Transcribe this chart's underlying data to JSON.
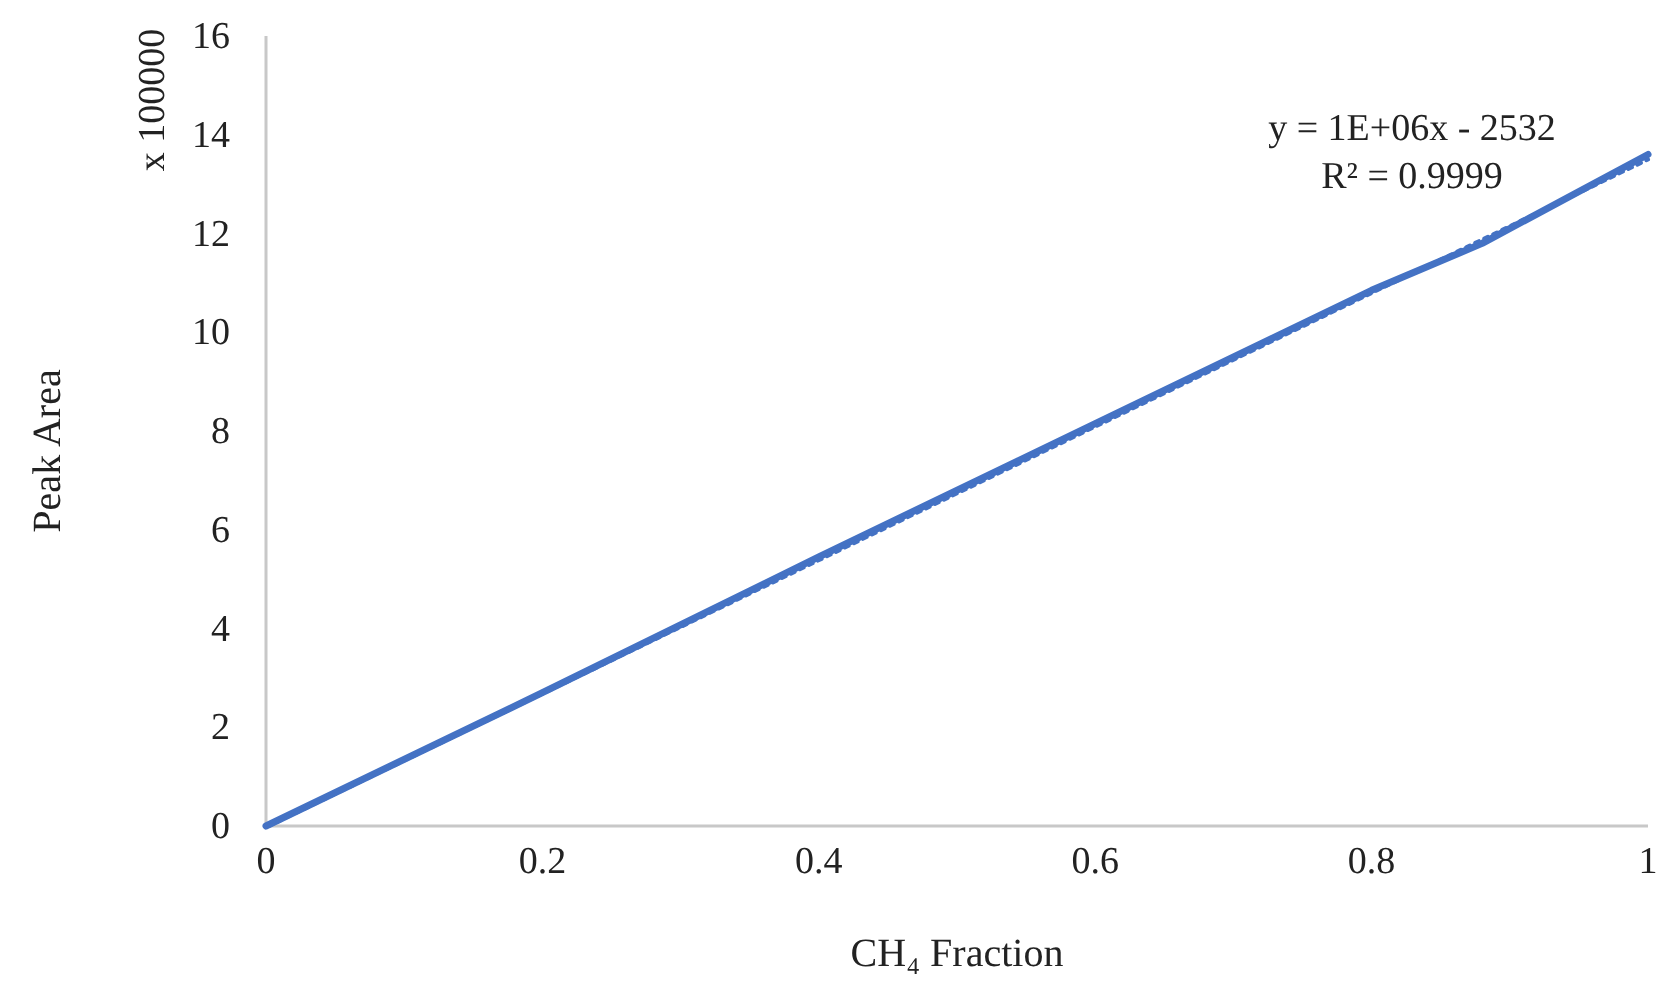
{
  "chart_data": {
    "type": "line",
    "xlabel": "CH₄ Fraction",
    "ylabel": "Peak Area",
    "annotations": [
      "x 100000",
      "y = 1E+06x - 2532",
      "R² = 0.9999"
    ],
    "xlim": [
      0,
      1
    ],
    "xticks": [
      0,
      0.2,
      0.4,
      0.6,
      0.8,
      1
    ],
    "ylim": [
      0,
      16
    ],
    "yticks": [
      0,
      2,
      4,
      6,
      8,
      10,
      12,
      14,
      16
    ],
    "grid": false,
    "marker": "none",
    "line_style": "solid",
    "series": [
      {
        "color": "#4472c4",
        "x": [
          0,
          0.2,
          0.4,
          0.6,
          0.8,
          0.88,
          1
        ],
        "values": [
          0,
          2.7,
          5.45,
          8.15,
          10.85,
          11.8,
          13.6
        ]
      },
      {
        "type": "line",
        "line_style": "dotted",
        "color": "#4472c4",
        "x": [
          0.002,
          1
        ],
        "values": [
          0,
          13.5
        ]
      }
    ]
  }
}
